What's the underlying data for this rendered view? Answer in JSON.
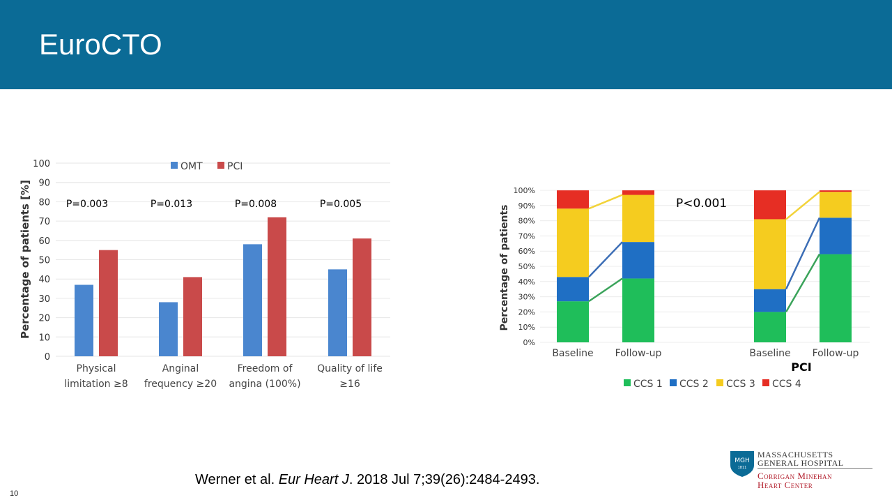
{
  "slide": {
    "title": "EuroCTO",
    "page_number": "10",
    "citation": {
      "authors": "Werner et al. ",
      "journal": "Eur Heart J",
      "details": ". 2018 Jul 7;39(26):2484-2493."
    }
  },
  "logo": {
    "badge": "MGH",
    "badge_year": "1811",
    "line1": "MASSACHUSETTS",
    "line2": "GENERAL HOSPITAL",
    "line3": "Corrigan Minehan",
    "line4": "Heart Center"
  },
  "colors": {
    "header": "#0b6b96",
    "omt": "#4a86cf",
    "pci": "#c94a4a",
    "ccs1": "#1fbe5a",
    "ccs2": "#1f6fc4",
    "ccs3": "#f5cc1f",
    "ccs4": "#e62e24"
  },
  "chart_data": [
    {
      "type": "bar",
      "ylabel": "Percentage of patients [%]",
      "ylim": [
        0,
        100
      ],
      "yticks": [
        0,
        10,
        20,
        30,
        40,
        50,
        60,
        70,
        80,
        90,
        100
      ],
      "grid": true,
      "legend": "top",
      "categories": [
        [
          "Physical",
          "limitation ≥8"
        ],
        [
          "Anginal",
          "frequency ≥20"
        ],
        [
          "Freedom of",
          "angina (100%)"
        ],
        [
          "Quality of life",
          "≥16"
        ]
      ],
      "pvalues": [
        "P=0.003",
        "P=0.013",
        "P=0.008",
        "P=0.005"
      ],
      "series": [
        {
          "name": "OMT",
          "values": [
            37,
            28,
            58,
            45
          ]
        },
        {
          "name": "PCI",
          "values": [
            55,
            41,
            72,
            61
          ]
        }
      ]
    },
    {
      "type": "bar",
      "stacked": true,
      "ylabel": "Percentage of patients",
      "ylim": [
        0,
        100
      ],
      "yticks": [
        "0%",
        "10%",
        "20%",
        "30%",
        "40%",
        "50%",
        "60%",
        "70%",
        "80%",
        "90%",
        "100%"
      ],
      "grid": true,
      "legend": "bottom",
      "annotation": "P<0.001",
      "group_label": "PCI",
      "categories": [
        "Baseline",
        "Follow-up",
        "Baseline",
        "Follow-up"
      ],
      "series": [
        {
          "name": "CCS 1",
          "values": [
            27,
            42,
            20,
            58
          ]
        },
        {
          "name": "CCS 2",
          "values": [
            16,
            24,
            15,
            24
          ]
        },
        {
          "name": "CCS 3",
          "values": [
            45,
            31,
            46,
            17
          ]
        },
        {
          "name": "CCS 4",
          "values": [
            12,
            3,
            19,
            1
          ]
        }
      ]
    }
  ]
}
